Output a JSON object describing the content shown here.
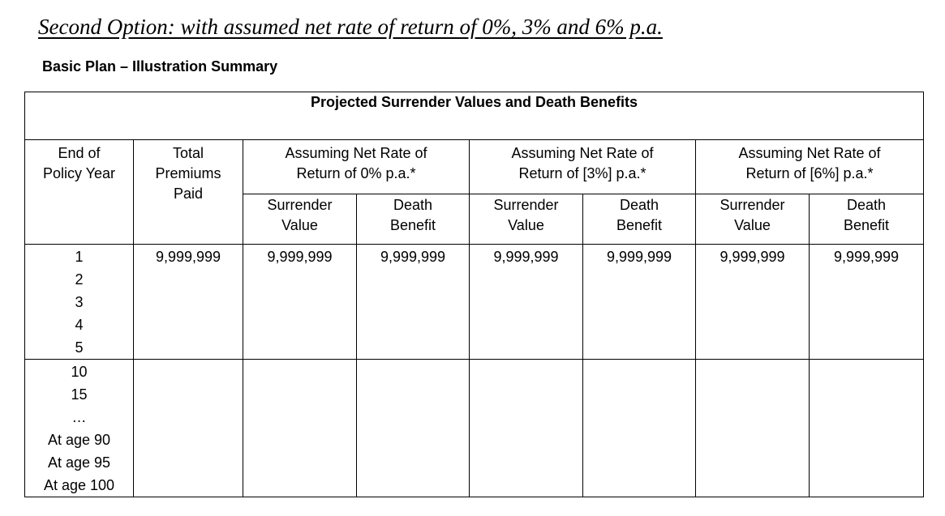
{
  "document": {
    "heading": "Second Option: with assumed net rate of return of 0%, 3% and 6% p.a.",
    "subheading": "Basic Plan – Illustration Summary"
  },
  "table": {
    "banner": "Projected Surrender Values and Death Benefits",
    "col_end_of_policy_year": [
      "End of",
      "Policy Year"
    ],
    "col_total_premiums": [
      "Total",
      "Premiums",
      "Paid"
    ],
    "groups": [
      {
        "line1": "Assuming Net Rate of",
        "line2": "Return of 0% p.a.*"
      },
      {
        "line1": "Assuming Net Rate of",
        "line2": "Return of [3%] p.a.*"
      },
      {
        "line1": "Assuming Net Rate of",
        "line2": "Return of [6%] p.a.*"
      }
    ],
    "subcols": {
      "surrender": [
        "Surrender",
        "Value"
      ],
      "death": [
        "Death",
        "Benefit"
      ]
    },
    "years_block1": [
      "1",
      "2",
      "3",
      "4",
      "5"
    ],
    "years_block2": [
      "10",
      "15",
      "…",
      "At age 90",
      "At age 95",
      "At age 100"
    ],
    "first_row_values": {
      "total_premiums": "9,999,999",
      "g0_surrender": "9,999,999",
      "g0_death": "9,999,999",
      "g1_surrender": "9,999,999",
      "g1_death": "9,999,999",
      "g2_surrender": "9,999,999",
      "g2_death": "9,999,999"
    }
  }
}
